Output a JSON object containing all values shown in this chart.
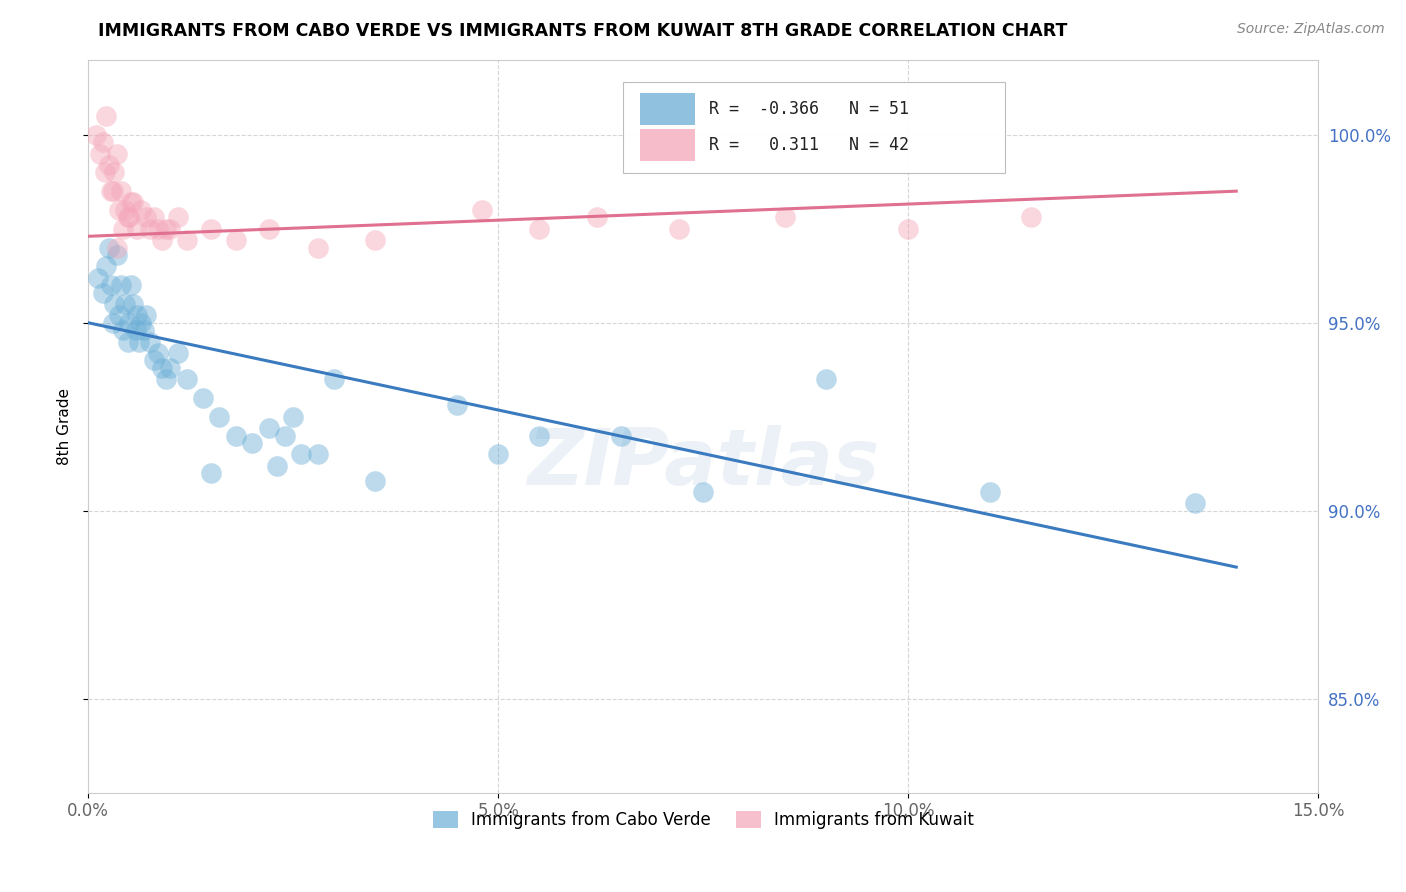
{
  "title": "IMMIGRANTS FROM CABO VERDE VS IMMIGRANTS FROM KUWAIT 8TH GRADE CORRELATION CHART",
  "source": "Source: ZipAtlas.com",
  "ylabel": "8th Grade",
  "xlim": [
    0.0,
    15.0
  ],
  "ylim": [
    82.5,
    102.0
  ],
  "xticks": [
    0.0,
    5.0,
    10.0,
    15.0
  ],
  "xticklabels": [
    "0.0%",
    "5.0%",
    "10.0%",
    "15.0%"
  ],
  "yticks": [
    85.0,
    90.0,
    95.0,
    100.0
  ],
  "yticklabels": [
    "85.0%",
    "90.0%",
    "95.0%",
    "100.0%"
  ],
  "cabo_verde_color": "#6baed6",
  "kuwait_color": "#f4a6b8",
  "cabo_verde_R": -0.366,
  "cabo_verde_N": 51,
  "kuwait_R": 0.311,
  "kuwait_N": 42,
  "cabo_verde_line_color": "#3a7abf",
  "kuwait_line_color": "#e07090",
  "cabo_verde_line_x0": 0.0,
  "cabo_verde_line_y0": 95.0,
  "cabo_verde_line_x1": 14.0,
  "cabo_verde_line_y1": 88.5,
  "kuwait_line_x0": 0.0,
  "kuwait_line_y0": 97.3,
  "kuwait_line_x1": 14.0,
  "kuwait_line_y1": 98.5,
  "cabo_verde_x": [
    0.12,
    0.18,
    0.22,
    0.25,
    0.28,
    0.32,
    0.35,
    0.38,
    0.4,
    0.42,
    0.45,
    0.48,
    0.5,
    0.52,
    0.55,
    0.58,
    0.6,
    0.62,
    0.65,
    0.68,
    0.7,
    0.75,
    0.8,
    0.85,
    0.9,
    0.95,
    1.0,
    1.1,
    1.2,
    1.4,
    1.6,
    1.8,
    2.0,
    2.2,
    2.4,
    2.5,
    2.8,
    3.0,
    4.5,
    5.0,
    5.5,
    6.5,
    7.5,
    9.0,
    11.0,
    13.5,
    2.3,
    1.5,
    3.5,
    2.6,
    0.3
  ],
  "cabo_verde_y": [
    96.2,
    95.8,
    96.5,
    97.0,
    96.0,
    95.5,
    96.8,
    95.2,
    96.0,
    94.8,
    95.5,
    94.5,
    95.0,
    96.0,
    95.5,
    94.8,
    95.2,
    94.5,
    95.0,
    94.8,
    95.2,
    94.5,
    94.0,
    94.2,
    93.8,
    93.5,
    93.8,
    94.2,
    93.5,
    93.0,
    92.5,
    92.0,
    91.8,
    92.2,
    92.0,
    92.5,
    91.5,
    93.5,
    92.8,
    91.5,
    92.0,
    92.0,
    90.5,
    93.5,
    90.5,
    90.2,
    91.2,
    91.0,
    90.8,
    91.5,
    95.0
  ],
  "kuwait_x": [
    0.1,
    0.15,
    0.18,
    0.22,
    0.25,
    0.28,
    0.32,
    0.35,
    0.38,
    0.4,
    0.42,
    0.45,
    0.5,
    0.55,
    0.6,
    0.65,
    0.7,
    0.75,
    0.8,
    0.85,
    0.9,
    0.95,
    1.0,
    1.2,
    1.5,
    1.8,
    2.2,
    2.8,
    3.5,
    0.2,
    0.3,
    1.1,
    4.8,
    5.5,
    6.2,
    7.2,
    8.5,
    10.0,
    11.5,
    0.48,
    0.52,
    0.35
  ],
  "kuwait_y": [
    100.0,
    99.5,
    99.8,
    100.5,
    99.2,
    98.5,
    99.0,
    99.5,
    98.0,
    98.5,
    97.5,
    98.0,
    97.8,
    98.2,
    97.5,
    98.0,
    97.8,
    97.5,
    97.8,
    97.5,
    97.2,
    97.5,
    97.5,
    97.2,
    97.5,
    97.2,
    97.5,
    97.0,
    97.2,
    99.0,
    98.5,
    97.8,
    98.0,
    97.5,
    97.8,
    97.5,
    97.8,
    97.5,
    97.8,
    97.8,
    98.2,
    97.0
  ]
}
